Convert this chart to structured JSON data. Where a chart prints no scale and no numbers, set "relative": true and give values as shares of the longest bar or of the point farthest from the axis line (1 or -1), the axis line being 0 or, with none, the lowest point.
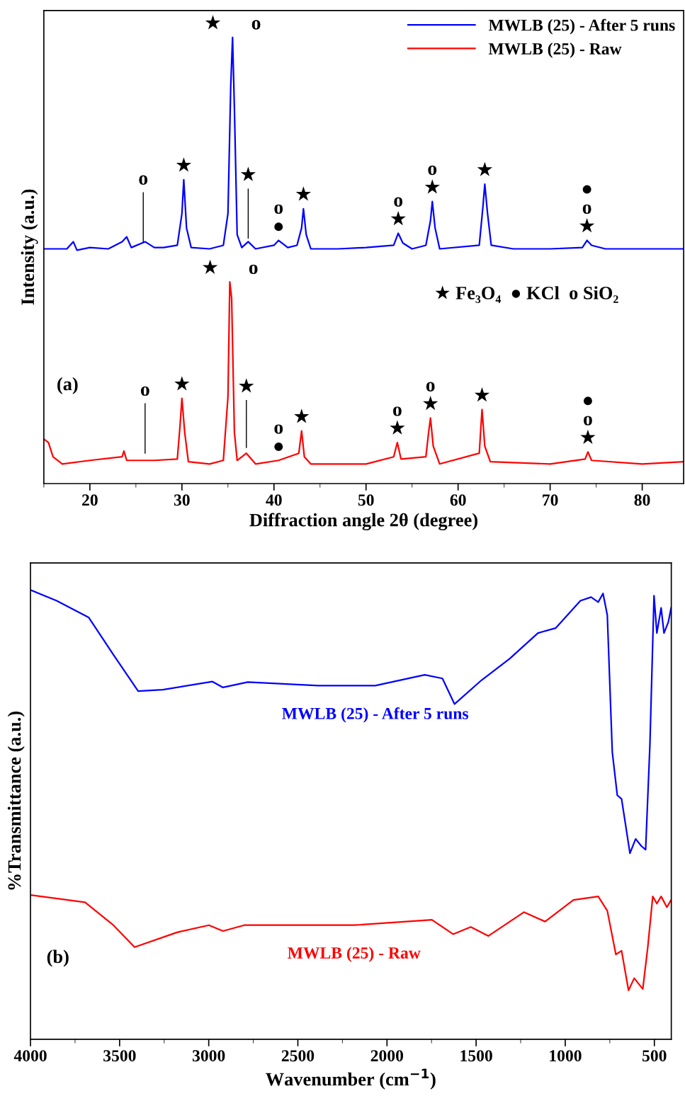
{
  "chart_data": [
    {
      "type": "line",
      "relative": true,
      "xlabel": "Diffraction angle 2θ (degree)",
      "ylabel": "Intensity (a.u.)",
      "xlim": [
        15,
        84.5
      ],
      "xticks": [
        20,
        30,
        40,
        50,
        60,
        70,
        80
      ],
      "tick_labels": "x",
      "legend": "top right",
      "grid": false,
      "series": [
        {
          "name": "MWLB (25) - After 5 runs",
          "color": "#0000ff",
          "x": [
            15.0,
            17.5,
            18.2,
            18.6,
            20,
            22,
            23.5,
            24,
            24.5,
            26,
            27,
            28,
            29.5,
            30.0,
            30.2,
            30.5,
            31,
            33,
            34.5,
            35.0,
            35.3,
            35.5,
            35.7,
            36,
            36.5,
            37.2,
            38,
            40,
            40.5,
            41.5,
            42.5,
            43.0,
            43.2,
            43.5,
            44,
            47,
            50,
            53,
            53.5,
            54,
            55,
            56.5,
            57.0,
            57.2,
            57.5,
            58,
            62.3,
            62.7,
            62.9,
            63.2,
            63.6,
            66,
            70,
            73.5,
            74,
            74.5,
            76,
            84.5
          ],
          "values": [
            0.526,
            0.526,
            0.542,
            0.523,
            0.529,
            0.526,
            0.542,
            0.553,
            0.529,
            0.542,
            0.529,
            0.529,
            0.534,
            0.605,
            0.681,
            0.573,
            0.529,
            0.526,
            0.534,
            0.605,
            0.889,
            1.0,
            0.842,
            0.558,
            0.529,
            0.542,
            0.526,
            0.534,
            0.545,
            0.529,
            0.534,
            0.573,
            0.616,
            0.558,
            0.526,
            0.526,
            0.529,
            0.534,
            0.561,
            0.539,
            0.526,
            0.534,
            0.589,
            0.632,
            0.573,
            0.526,
            0.534,
            0.621,
            0.671,
            0.605,
            0.534,
            0.526,
            0.526,
            0.529,
            0.545,
            0.534,
            0.526,
            0.526
          ]
        },
        {
          "name": "MWLB (25) - Raw",
          "color": "#ff0000",
          "x": [
            15,
            15.5,
            16,
            17,
            20,
            23.5,
            23.7,
            24,
            27,
            29.5,
            29.8,
            30,
            30.3,
            30.7,
            33,
            34.5,
            35.0,
            35.2,
            35.4,
            35.7,
            36,
            37,
            38,
            40.5,
            42.7,
            43,
            43.3,
            44,
            50,
            53,
            53.4,
            53.8,
            56.5,
            56.8,
            57,
            57.3,
            58,
            62.3,
            62.6,
            62.9,
            63.5,
            70,
            73.8,
            74.1,
            74.5,
            80,
            84.5
          ],
          "values": [
            0.1,
            0.092,
            0.06,
            0.044,
            0.052,
            0.06,
            0.073,
            0.052,
            0.052,
            0.055,
            0.131,
            0.191,
            0.115,
            0.049,
            0.044,
            0.052,
            0.194,
            0.452,
            0.415,
            0.115,
            0.052,
            0.068,
            0.044,
            0.052,
            0.068,
            0.118,
            0.06,
            0.044,
            0.044,
            0.06,
            0.092,
            0.055,
            0.06,
            0.115,
            0.147,
            0.084,
            0.044,
            0.068,
            0.166,
            0.084,
            0.049,
            0.044,
            0.055,
            0.071,
            0.052,
            0.044,
            0.049
          ]
        },
        {
          "type": "line",
          "color": "#000000",
          "x": [
            25.8,
            25.8
          ],
          "values": [
            0.652,
            0.542
          ]
        },
        {
          "type": "line",
          "color": "#000000",
          "x": [
            37.2,
            37.2
          ],
          "values": [
            0.66,
            0.55
          ]
        },
        {
          "type": "line",
          "color": "#000000",
          "x": [
            26,
            26
          ],
          "values": [
            0.179,
            0.068
          ]
        },
        {
          "type": "line",
          "color": "#000000",
          "x": [
            37,
            37
          ],
          "values": [
            0.186,
            0.081
          ]
        }
      ],
      "annotations": [
        "(a)",
        "★ Fe₃O₄  ● KCl  o SiO₂",
        {
          "text": "★      o",
          "x": 35.5,
          "y": 1.0
        },
        {
          "text": "o",
          "x": 25.8,
          "y": 0.652
        },
        {
          "text": "★",
          "x": 30.2,
          "y": 0.681
        },
        {
          "text": "★",
          "x": 37.2,
          "y": 0.66
        },
        {
          "text": "●",
          "x": 40.5,
          "y": 0.545
        },
        {
          "text": "o",
          "x": 40.5,
          "y": 0.545
        },
        {
          "text": "★",
          "x": 43.2,
          "y": 0.616
        },
        {
          "text": "★",
          "x": 53.5,
          "y": 0.561
        },
        {
          "text": "o",
          "x": 53.5,
          "y": 0.561
        },
        {
          "text": "★",
          "x": 57.2,
          "y": 0.632
        },
        {
          "text": "o",
          "x": 57.2,
          "y": 0.632
        },
        {
          "text": "★",
          "x": 62.9,
          "y": 0.671
        },
        {
          "text": "★",
          "x": 74,
          "y": 0.545
        },
        {
          "text": "o",
          "x": 74,
          "y": 0.545
        },
        {
          "text": "●",
          "x": 74,
          "y": 0.545
        },
        {
          "text": "★      o",
          "x": 35.2,
          "y": 0.452
        },
        {
          "text": "o",
          "x": 26,
          "y": 0.179
        },
        {
          "text": "★",
          "x": 30,
          "y": 0.191
        },
        {
          "text": "★",
          "x": 37,
          "y": 0.186
        },
        {
          "text": "●",
          "x": 40.5,
          "y": 0.052
        },
        {
          "text": "o",
          "x": 40.5,
          "y": 0.052
        },
        {
          "text": "★",
          "x": 43,
          "y": 0.118
        },
        {
          "text": "★",
          "x": 53.4,
          "y": 0.092
        },
        {
          "text": "o",
          "x": 53.4,
          "y": 0.092
        },
        {
          "text": "★",
          "x": 57,
          "y": 0.147
        },
        {
          "text": "o",
          "x": 57,
          "y": 0.147
        },
        {
          "text": "★",
          "x": 62.6,
          "y": 0.166
        },
        {
          "text": "★",
          "x": 74.1,
          "y": 0.071
        },
        {
          "text": "o",
          "x": 74.1,
          "y": 0.071
        },
        {
          "text": "●",
          "x": 74.1,
          "y": 0.071
        }
      ]
    },
    {
      "type": "line",
      "relative": true,
      "xlabel": "Wavenumber (cm$^{−1}$)",
      "ylabel": "%Transmittance (a.u.)",
      "xlim": [
        4000,
        405
      ],
      "xticks": [
        4000,
        3500,
        3000,
        2500,
        2000,
        1500,
        1000,
        500
      ],
      "tick_labels": "x",
      "grid": false,
      "series": [
        {
          "name": "MWLB (25) - After 5 runs",
          "color": "#0000ff",
          "x": [
            4000,
            3853,
            3674,
            3535,
            3396,
            3257,
            2979,
            2920,
            2781,
            2384,
            2066,
            1788,
            1689,
            1621,
            1470,
            1312,
            1153,
            1054,
            915,
            855,
            815,
            788,
            764,
            736,
            708,
            684,
            668,
            637,
            605,
            573,
            549,
            525,
            502,
            486,
            462,
            446,
            422,
            406
          ],
          "values": [
            1.0,
            0.976,
            0.939,
            0.856,
            0.775,
            0.778,
            0.796,
            0.783,
            0.795,
            0.787,
            0.787,
            0.811,
            0.803,
            0.746,
            0.799,
            0.847,
            0.904,
            0.915,
            0.976,
            0.984,
            0.973,
            0.992,
            0.944,
            0.639,
            0.543,
            0.535,
            0.494,
            0.414,
            0.446,
            0.43,
            0.422,
            0.655,
            0.987,
            0.904,
            0.96,
            0.904,
            0.928,
            0.96
          ]
        },
        {
          "name": "MWLB (25) - Raw",
          "color": "#ff0000",
          "x": [
            4000,
            3694,
            3535,
            3416,
            3178,
            2999,
            2920,
            2801,
            2185,
            1748,
            1629,
            1530,
            1431,
            1232,
            1113,
            954,
            815,
            764,
            716,
            684,
            645,
            613,
            565,
            537,
            509,
            486,
            462,
            430,
            406
          ],
          "values": [
            0.321,
            0.305,
            0.254,
            0.205,
            0.238,
            0.254,
            0.241,
            0.254,
            0.254,
            0.266,
            0.234,
            0.25,
            0.23,
            0.283,
            0.262,
            0.31,
            0.318,
            0.286,
            0.189,
            0.197,
            0.109,
            0.136,
            0.112,
            0.205,
            0.318,
            0.302,
            0.318,
            0.294,
            0.31
          ]
        }
      ],
      "annotations": [
        "(b)"
      ]
    }
  ]
}
